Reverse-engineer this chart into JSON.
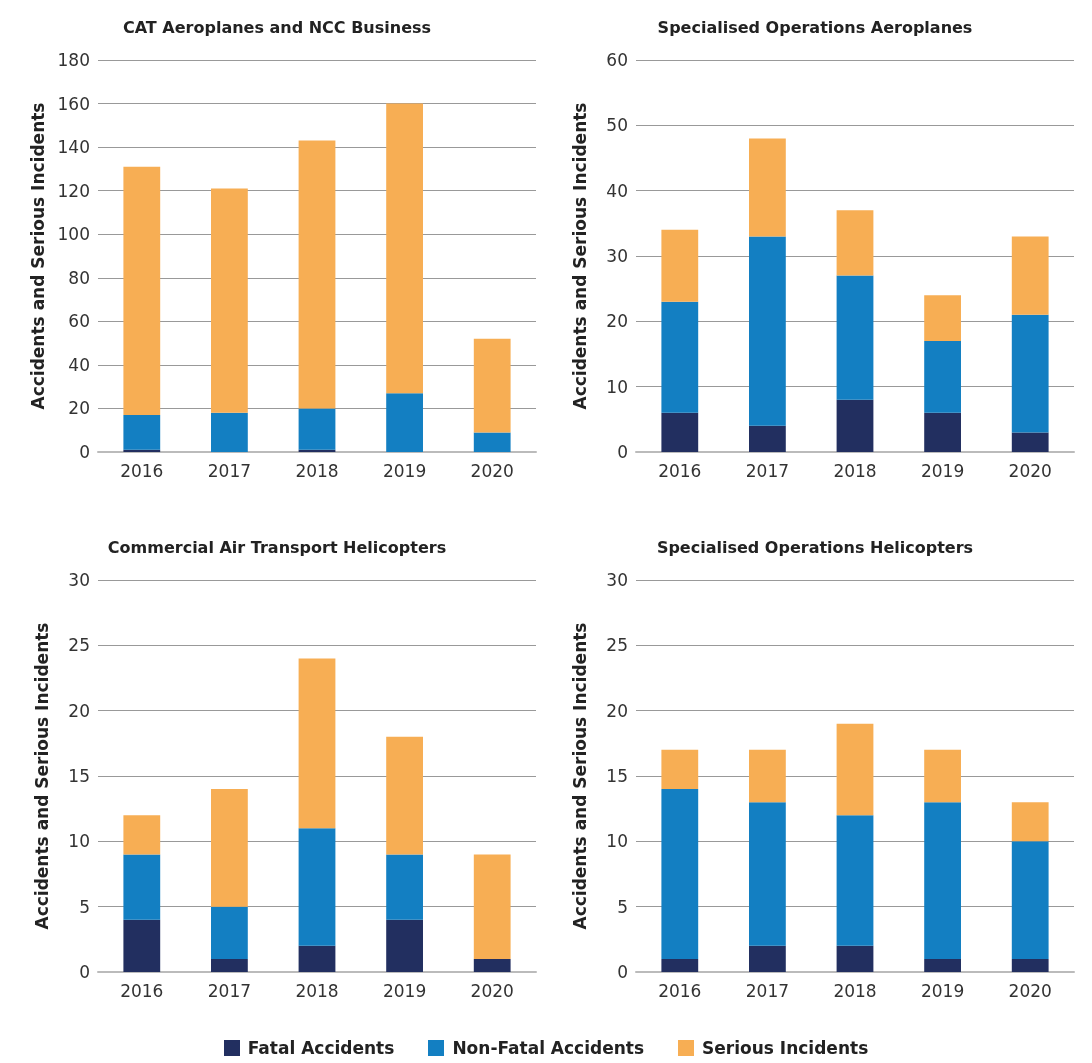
{
  "chart_data": [
    {
      "type": "bar",
      "title": "CAT Aeroplanes and NCC Business",
      "ylabel": "Accidents and Serious Incidents",
      "categories": [
        "2016",
        "2017",
        "2018",
        "2019",
        "2020"
      ],
      "stacked": true,
      "ylim": [
        0,
        180
      ],
      "yticks": [
        0,
        20,
        40,
        60,
        80,
        100,
        120,
        140,
        160,
        180
      ],
      "grid": "y",
      "series": [
        {
          "color": "#222f60",
          "values": [
            1,
            0,
            1,
            0,
            0
          ]
        },
        {
          "color": "#137fc2",
          "values": [
            16,
            18,
            19,
            27,
            9
          ]
        },
        {
          "color": "#f7ae54",
          "values": [
            114,
            103,
            123,
            133,
            43
          ]
        }
      ]
    },
    {
      "type": "bar",
      "title": "Specialised Operations Aeroplanes",
      "ylabel": "Accidents and Serious Incidents",
      "categories": [
        "2016",
        "2017",
        "2018",
        "2019",
        "2020"
      ],
      "stacked": true,
      "ylim": [
        0,
        60
      ],
      "yticks": [
        0,
        10,
        20,
        30,
        40,
        50,
        60
      ],
      "grid": "y",
      "series": [
        {
          "color": "#222f60",
          "values": [
            6,
            4,
            8,
            6,
            3
          ]
        },
        {
          "color": "#137fc2",
          "values": [
            17,
            29,
            19,
            11,
            18
          ]
        },
        {
          "color": "#f7ae54",
          "values": [
            11,
            15,
            10,
            7,
            12
          ]
        }
      ]
    },
    {
      "type": "bar",
      "title": "Commercial Air Transport Helicopters",
      "ylabel": "Accidents and Serious Incidents",
      "categories": [
        "2016",
        "2017",
        "2018",
        "2019",
        "2020"
      ],
      "stacked": true,
      "ylim": [
        0,
        30
      ],
      "yticks": [
        0,
        5,
        10,
        15,
        20,
        25,
        30
      ],
      "grid": "y",
      "series": [
        {
          "color": "#222f60",
          "values": [
            4,
            1,
            2,
            4,
            1
          ]
        },
        {
          "color": "#137fc2",
          "values": [
            5,
            4,
            9,
            5,
            0
          ]
        },
        {
          "color": "#f7ae54",
          "values": [
            3,
            9,
            13,
            9,
            8
          ]
        }
      ]
    },
    {
      "type": "bar",
      "title": "Specialised Operations Helicopters",
      "ylabel": "Accidents and Serious Incidents",
      "categories": [
        "2016",
        "2017",
        "2018",
        "2019",
        "2020"
      ],
      "stacked": true,
      "ylim": [
        0,
        30
      ],
      "yticks": [
        0,
        5,
        10,
        15,
        20,
        25,
        30
      ],
      "grid": "y",
      "legend": "bottom",
      "series": [
        {
          "name": "Fatal Accidents",
          "color": "#222f60",
          "values": [
            1,
            2,
            2,
            1,
            1
          ]
        },
        {
          "name": "Non-Fatal Accidents",
          "color": "#137fc2",
          "values": [
            13,
            11,
            10,
            12,
            9
          ]
        },
        {
          "name": "Serious Incidents",
          "color": "#f7ae54",
          "values": [
            3,
            4,
            7,
            4,
            3
          ]
        }
      ]
    }
  ]
}
